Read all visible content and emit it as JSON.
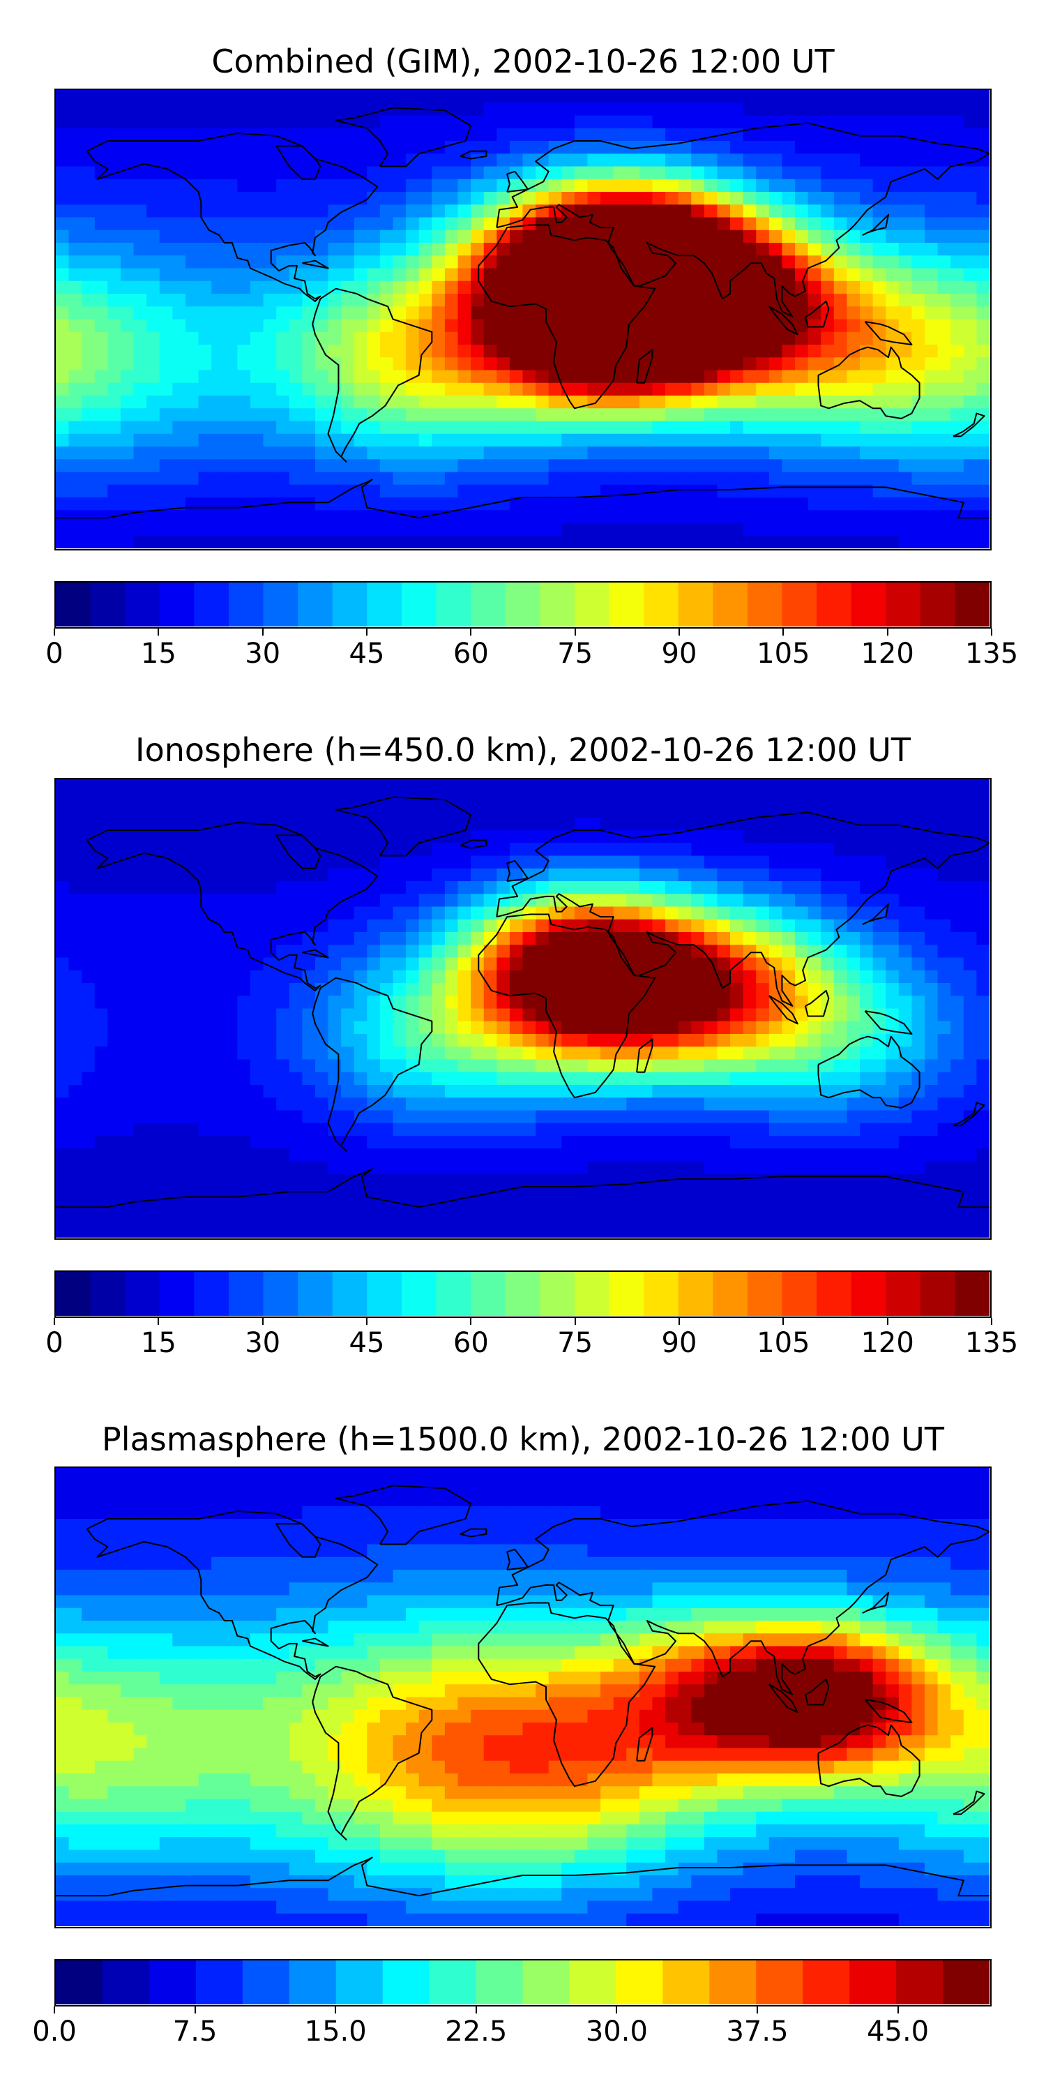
{
  "chart_data": [
    {
      "type": "heatmap",
      "title": "Combined (GIM), 2002-10-26 12:00 UT",
      "colormap": "jet",
      "levels": 27,
      "range": [
        0,
        135
      ],
      "colorbar_ticks": [
        "0",
        "15",
        "30",
        "45",
        "60",
        "75",
        "90",
        "105",
        "120",
        "135"
      ],
      "features": [
        {
          "lon": 25,
          "lat": 18,
          "value": 125,
          "spread": 34
        },
        {
          "lon": 45,
          "lat": 22,
          "value": 120,
          "spread": 30
        },
        {
          "lon": 35,
          "lat": -8,
          "value": 115,
          "spread": 30
        },
        {
          "lon": 75,
          "lat": 8,
          "value": 100,
          "spread": 32
        },
        {
          "lon": -40,
          "lat": -15,
          "value": 80,
          "spread": 40
        },
        {
          "lon": 120,
          "lat": -10,
          "value": 70,
          "spread": 40
        },
        {
          "lon": -170,
          "lat": -15,
          "value": 55,
          "spread": 45
        }
      ],
      "baseline": 18
    },
    {
      "type": "heatmap",
      "title": "Ionosphere  (h=450.0 km), 2002-10-26 12:00 UT",
      "colormap": "jet",
      "levels": 27,
      "range": [
        0,
        135
      ],
      "colorbar_ticks": [
        "0",
        "15",
        "30",
        "45",
        "60",
        "75",
        "90",
        "105",
        "120",
        "135"
      ],
      "features": [
        {
          "lon": 20,
          "lat": 18,
          "value": 105,
          "spread": 30
        },
        {
          "lon": 40,
          "lat": 5,
          "value": 90,
          "spread": 32
        },
        {
          "lon": 80,
          "lat": 10,
          "value": 70,
          "spread": 32
        },
        {
          "lon": -30,
          "lat": -10,
          "value": 55,
          "spread": 36
        },
        {
          "lon": 120,
          "lat": -10,
          "value": 48,
          "spread": 36
        }
      ],
      "baseline": 14
    },
    {
      "type": "heatmap",
      "title": "Plasmasphere (h=1500.0 km), 2002-10-26 12:00 UT",
      "colormap": "jet",
      "levels": 20,
      "range": [
        0,
        50
      ],
      "colorbar_ticks": [
        "0.0",
        "7.5",
        "15.0",
        "22.5",
        "30.0",
        "37.5",
        "45.0"
      ],
      "features": [
        {
          "lon": 120,
          "lat": 0,
          "value": 36,
          "spread": 30
        },
        {
          "lon": 80,
          "lat": 0,
          "value": 30,
          "spread": 35
        },
        {
          "lon": -40,
          "lat": -20,
          "value": 26,
          "spread": 55
        },
        {
          "lon": 20,
          "lat": -25,
          "value": 26,
          "spread": 50
        },
        {
          "lon": -170,
          "lat": -20,
          "value": 25,
          "spread": 50
        }
      ],
      "baseline": 8
    }
  ]
}
